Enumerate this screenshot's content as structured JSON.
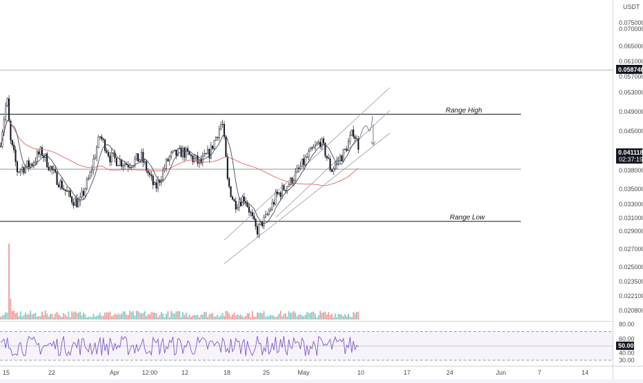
{
  "chart_data": {
    "type": "candlestick",
    "quote_currency": "USDT",
    "y_axis_ticks": [
      "0.075000",
      "0.070000",
      "0.065000",
      "0.061000",
      "0.057000",
      "0.053000",
      "0.049000",
      "0.045000",
      "0.041000",
      "0.038000",
      "0.035000",
      "0.033000",
      "0.031000",
      "0.029000",
      "0.027000",
      "0.025000",
      "0.023500",
      "0.022100",
      "0.020800"
    ],
    "x_axis_ticks": [
      "15",
      "22",
      "Apr",
      "12:00",
      "12",
      "18",
      "25",
      "May",
      "10",
      "17",
      "24",
      "Jun",
      "7",
      "14"
    ],
    "price_label": {
      "value": "0.041118",
      "countdown": "02:37:19",
      "color": "#131722"
    },
    "high_label": {
      "value": "0.058748",
      "color": "#131722"
    },
    "annotations": [
      {
        "text": "Range High",
        "price": 0.0485
      },
      {
        "text": "Range Low",
        "price": 0.0305
      }
    ],
    "horizontal_levels": [
      {
        "price": 0.0485,
        "name": "range-high"
      },
      {
        "price": 0.0305,
        "name": "range-low"
      },
      {
        "price": 0.0382,
        "name": "mid"
      },
      {
        "price": 0.0587,
        "name": "top"
      }
    ],
    "rsi": {
      "ticks": [
        "80.00",
        "60.00",
        "40.00",
        "30.00"
      ],
      "current_label": "50.00",
      "upper_band": 70,
      "lower_band": 30,
      "mid": 50
    },
    "colors": {
      "up": "#26a69a",
      "down": "#ef5350",
      "candle": "#131722",
      "ma_red": "#e57373",
      "ma_dark": "#434651",
      "vol_up": "#80cbc4",
      "vol_down": "#ef9a9a",
      "rsi": "#7e57c2"
    }
  }
}
